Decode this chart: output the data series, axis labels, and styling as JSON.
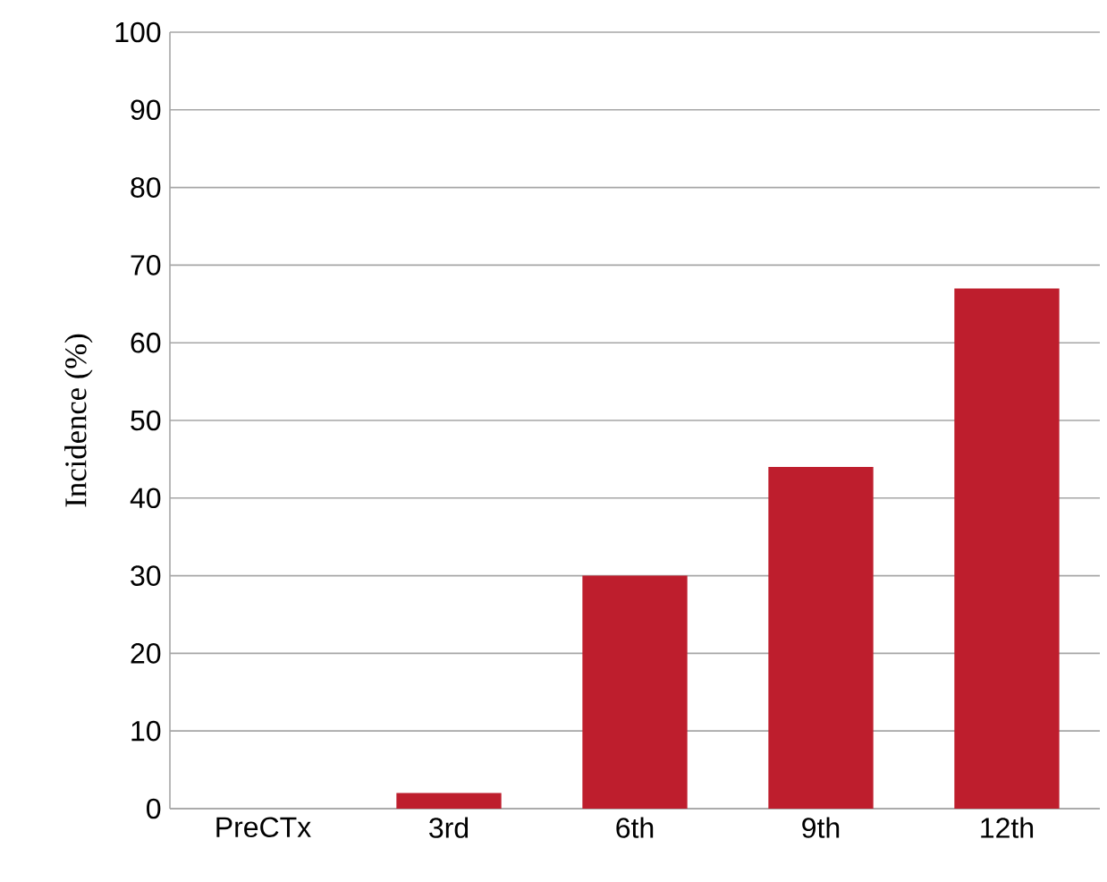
{
  "chart_data": {
    "type": "bar",
    "ylabel": "Incidence (%)",
    "categories": [
      "PreCTx",
      "3rd",
      "6th",
      "9th",
      "12th"
    ],
    "values": [
      0,
      2,
      30,
      44,
      67
    ],
    "color": "#be1e2d",
    "ylim": [
      0,
      100
    ],
    "yticks": [
      0,
      10,
      20,
      30,
      40,
      50,
      60,
      70,
      80,
      90,
      100
    ],
    "grid": "y"
  }
}
